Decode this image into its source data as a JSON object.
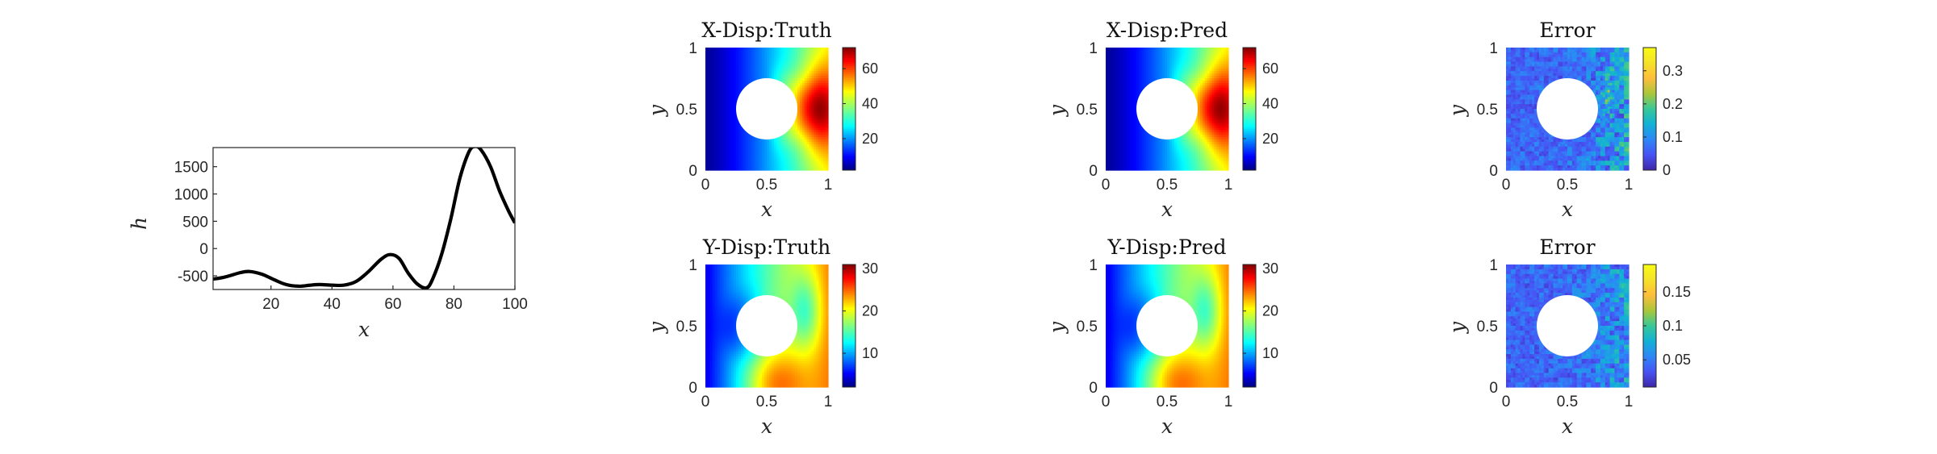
{
  "chart_data": [
    {
      "type": "line",
      "xlabel": "x",
      "ylabel": "h",
      "xlim": [
        1,
        100
      ],
      "ylim": [
        -750,
        1850
      ],
      "xticks": [
        20,
        40,
        60,
        80,
        100
      ],
      "yticks": [
        -500,
        0,
        500,
        1000,
        1500
      ],
      "x": [
        1,
        5,
        10,
        13,
        17,
        21,
        25,
        29,
        33,
        36,
        40,
        44,
        48,
        52,
        56,
        59,
        62,
        65,
        68,
        71,
        73,
        76,
        79,
        82,
        85,
        87,
        89,
        92,
        95,
        98,
        100
      ],
      "values": [
        -560,
        -520,
        -440,
        -420,
        -470,
        -570,
        -660,
        -690,
        -670,
        -660,
        -670,
        -670,
        -600,
        -420,
        -200,
        -110,
        -180,
        -450,
        -650,
        -720,
        -560,
        -100,
        550,
        1300,
        1780,
        1870,
        1800,
        1500,
        1050,
        680,
        470
      ],
      "grid": false
    },
    {
      "type": "heatmap",
      "title": "X-Disp:Truth",
      "xlabel": "x",
      "ylabel": "y",
      "xlim": [
        0,
        1
      ],
      "ylim": [
        0,
        1
      ],
      "xticks": [
        "0",
        "0.5",
        "1"
      ],
      "yticks": [
        "0",
        "0.5",
        "1"
      ],
      "hole": {
        "center": [
          0.5,
          0.5
        ],
        "radius": 0.25
      },
      "colormap": "jet",
      "clim": [
        2,
        72
      ],
      "colorbar_ticks": [
        20,
        40,
        60
      ],
      "field": "x-displacement"
    },
    {
      "type": "heatmap",
      "title": "X-Disp:Pred",
      "xlabel": "x",
      "ylabel": "y",
      "xlim": [
        0,
        1
      ],
      "ylim": [
        0,
        1
      ],
      "xticks": [
        "0",
        "0.5",
        "1"
      ],
      "yticks": [
        "0",
        "0.5",
        "1"
      ],
      "hole": {
        "center": [
          0.5,
          0.5
        ],
        "radius": 0.25
      },
      "colormap": "jet",
      "clim": [
        2,
        72
      ],
      "colorbar_ticks": [
        20,
        40,
        60
      ],
      "field": "x-displacement"
    },
    {
      "type": "heatmap",
      "title": "Error",
      "xlabel": "x",
      "ylabel": "y",
      "xlim": [
        0,
        1
      ],
      "ylim": [
        0,
        1
      ],
      "xticks": [
        "0",
        "0.5",
        "1"
      ],
      "yticks": [
        "0",
        "0.5",
        "1"
      ],
      "hole": {
        "center": [
          0.5,
          0.5
        ],
        "radius": 0.25
      },
      "colormap": "parula",
      "clim": [
        0,
        0.37
      ],
      "colorbar_ticks": [
        0,
        0.1,
        0.2,
        0.3
      ],
      "colorbar_tick_labels": [
        "0",
        "0.1",
        "0.2",
        "0.3"
      ],
      "field": "error-x"
    },
    {
      "type": "heatmap",
      "title": "Y-Disp:Truth",
      "xlabel": "x",
      "ylabel": "y",
      "xlim": [
        0,
        1
      ],
      "ylim": [
        0,
        1
      ],
      "xticks": [
        "0",
        "0.5",
        "1"
      ],
      "yticks": [
        "0",
        "0.5",
        "1"
      ],
      "hole": {
        "center": [
          0.5,
          0.5
        ],
        "radius": 0.25
      },
      "colormap": "jet",
      "clim": [
        2,
        31
      ],
      "colorbar_ticks": [
        10,
        20,
        30
      ],
      "field": "y-displacement"
    },
    {
      "type": "heatmap",
      "title": "Y-Disp:Pred",
      "xlabel": "x",
      "ylabel": "y",
      "xlim": [
        0,
        1
      ],
      "ylim": [
        0,
        1
      ],
      "xticks": [
        "0",
        "0.5",
        "1"
      ],
      "yticks": [
        "0",
        "0.5",
        "1"
      ],
      "hole": {
        "center": [
          0.5,
          0.5
        ],
        "radius": 0.25
      },
      "colormap": "jet",
      "clim": [
        2,
        31
      ],
      "colorbar_ticks": [
        10,
        20,
        30
      ],
      "field": "y-displacement"
    },
    {
      "type": "heatmap",
      "title": "Error",
      "xlabel": "x",
      "ylabel": "y",
      "xlim": [
        0,
        1
      ],
      "ylim": [
        0,
        1
      ],
      "xticks": [
        "0",
        "0.5",
        "1"
      ],
      "yticks": [
        "0",
        "0.5",
        "1"
      ],
      "hole": {
        "center": [
          0.5,
          0.5
        ],
        "radius": 0.25
      },
      "colormap": "parula",
      "clim": [
        0.01,
        0.19
      ],
      "colorbar_ticks": [
        0.05,
        0.1,
        0.15
      ],
      "colorbar_tick_labels": [
        "0.05",
        "0.1",
        "0.15"
      ],
      "field": "error-y"
    }
  ]
}
